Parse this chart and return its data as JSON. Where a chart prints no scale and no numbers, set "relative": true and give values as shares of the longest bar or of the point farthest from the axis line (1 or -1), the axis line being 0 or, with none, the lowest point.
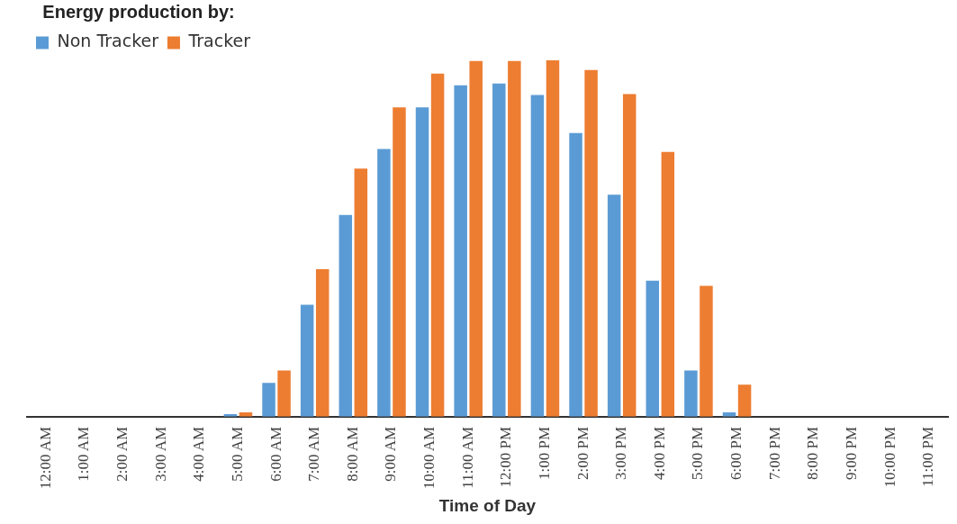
{
  "chart_data": {
    "type": "bar",
    "relative": true,
    "xlabel": "Time of Day",
    "legend_title": "Energy production by:",
    "legend": "top left",
    "categories": [
      "12:00 AM",
      "1:00 AM",
      "2:00 AM",
      "3:00 AM",
      "4:00 AM",
      "5:00 AM",
      "6:00 AM",
      "7:00 AM",
      "8:00 AM",
      "9:00 AM",
      "10:00 AM",
      "11:00 AM",
      "12:00 PM",
      "1:00 PM",
      "2:00 PM",
      "3:00 PM",
      "4:00 PM",
      "5:00 PM",
      "6:00 PM",
      "7:00 PM",
      "8:00 PM",
      "9:00 PM",
      "10:00 PM",
      "11:00 PM"
    ],
    "series": [
      {
        "name": "Non Tracker",
        "color": "#5b9bd5",
        "values": [
          0,
          0,
          0,
          0,
          0,
          0.007,
          0.095,
          0.314,
          0.566,
          0.751,
          0.868,
          0.93,
          0.935,
          0.903,
          0.796,
          0.623,
          0.382,
          0.13,
          0.012,
          0,
          0,
          0,
          0,
          0
        ]
      },
      {
        "name": "Tracker",
        "color": "#ed7d31",
        "values": [
          0,
          0,
          0,
          0,
          0,
          0.012,
          0.13,
          0.414,
          0.696,
          0.868,
          0.963,
          0.998,
          0.998,
          1,
          0.973,
          0.905,
          0.743,
          0.367,
          0.09,
          0,
          0,
          0,
          0,
          0
        ]
      }
    ]
  }
}
